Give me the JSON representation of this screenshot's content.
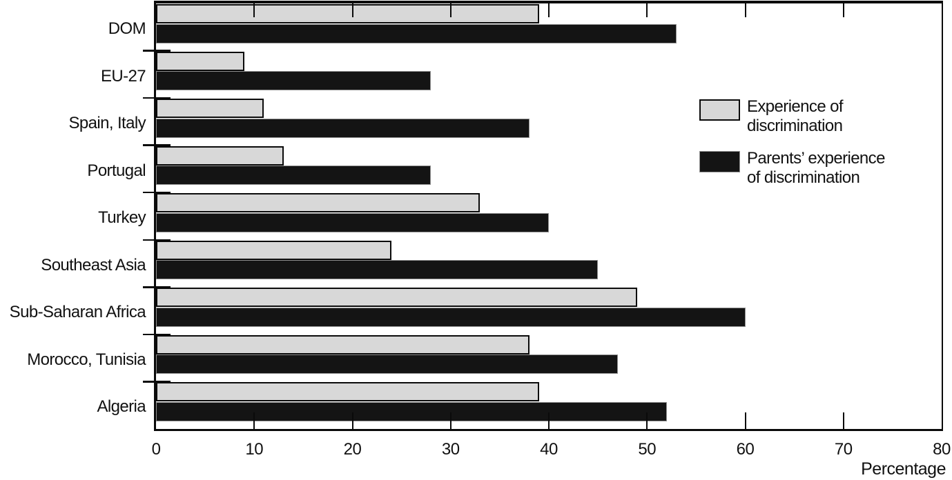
{
  "chart_data": {
    "type": "bar",
    "orientation": "horizontal",
    "title": "",
    "xlabel": "Percentage",
    "ylabel": "",
    "xlim": [
      0,
      80
    ],
    "xticks": [
      0,
      10,
      20,
      30,
      40,
      50,
      60,
      70,
      80
    ],
    "grid": false,
    "legend_position": "inside-right",
    "background_color": "#ffffff",
    "categories": [
      "DOM",
      "EU-27",
      "Spain, Italy",
      "Portugal",
      "Turkey",
      "Southeast Asia",
      "Sub-Saharan Africa",
      "Morocco, Tunisia",
      "Algeria"
    ],
    "series": [
      {
        "name": "Experience of discrimination",
        "color": "#d8d8d8",
        "border_color": "#0a0a0a",
        "values": [
          39,
          9,
          11,
          13,
          33,
          24,
          49,
          38,
          39
        ]
      },
      {
        "name": "Parents’ experience of discrimination",
        "color": "#141414",
        "border_color": "#8f8f8f",
        "values": [
          53,
          28,
          38,
          28,
          40,
          45,
          60,
          47,
          52
        ]
      }
    ],
    "legend": [
      {
        "series": "Experience of discrimination",
        "lines": [
          "Experience of",
          "discrimination"
        ],
        "swatch_color": "#d8d8d8",
        "swatch_border": "#0a0a0a"
      },
      {
        "series": "Parents’ experience of discrimination",
        "lines": [
          "Parents’ experience",
          "of discrimination"
        ],
        "swatch_color": "#141414",
        "swatch_border": "#8f8f8f"
      }
    ]
  }
}
